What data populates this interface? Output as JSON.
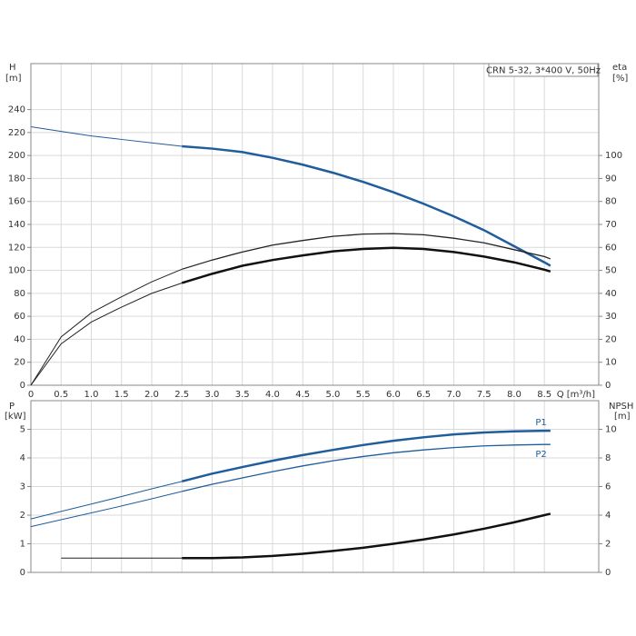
{
  "chart_data": [
    {
      "type": "line",
      "annotation": "CRN 5-32, 3*400 V, 50Hz",
      "ylabel": "H",
      "yunit": "[m]",
      "y2label": "eta",
      "y2unit": "[%]",
      "xlabel": "Q [m³/h]",
      "x": [
        0,
        0.5,
        1,
        1.5,
        2,
        2.5,
        3,
        3.5,
        4,
        4.5,
        5,
        5.5,
        6,
        6.5,
        7,
        7.5,
        8,
        8.5,
        8.6
      ],
      "xlim": [
        0,
        9.4
      ],
      "xticks": [
        0,
        0.5,
        {
          "value": 1,
          "label": "1.0"
        },
        1.5,
        {
          "value": 2,
          "label": "2.0"
        },
        2.5,
        {
          "value": 3,
          "label": "3.0"
        },
        3.5,
        {
          "value": 4,
          "label": "4.0"
        },
        4.5,
        {
          "value": 5,
          "label": "5.0"
        },
        5.5,
        {
          "value": 6,
          "label": "6.0"
        },
        6.5,
        {
          "value": 7,
          "label": "7.0"
        },
        7.5,
        {
          "value": 8,
          "label": "8.0"
        },
        8.5
      ],
      "ylim": [
        0,
        280
      ],
      "yticks": [
        0,
        20,
        40,
        60,
        80,
        100,
        120,
        140,
        160,
        180,
        200,
        220,
        240
      ],
      "y2lim": [
        0,
        140
      ],
      "y2ticks": [
        0,
        10,
        20,
        30,
        40,
        50,
        60,
        70,
        80,
        90,
        100
      ],
      "series": [
        {
          "color": "#1f5d9c",
          "width": 1,
          "values": [
            225,
            221,
            217,
            214,
            211,
            208,
            null,
            null,
            null,
            null,
            null,
            null,
            null,
            null,
            null,
            null,
            null,
            null,
            null
          ]
        },
        {
          "color": "#1f5d9c",
          "width": 2.5,
          "values": [
            null,
            null,
            null,
            null,
            null,
            208,
            206,
            203,
            198,
            192,
            185,
            177,
            168,
            158,
            147,
            135,
            121,
            107,
            104
          ]
        },
        {
          "color": "#222222",
          "width": 1,
          "axis": "y2",
          "values": [
            0,
            21,
            31.5,
            38.5,
            45,
            50.5,
            null,
            null,
            null,
            null,
            null,
            null,
            null,
            null,
            null,
            null,
            null,
            null,
            null
          ]
        },
        {
          "color": "#222222",
          "width": 1.3,
          "axis": "y2",
          "values": [
            null,
            null,
            null,
            null,
            null,
            50.5,
            54.5,
            58,
            61,
            63,
            64.8,
            65.8,
            66,
            65.5,
            64,
            62,
            59,
            56,
            55
          ]
        },
        {
          "color": "#222222",
          "width": 1,
          "axis": "y2",
          "values": [
            0,
            18,
            27.5,
            34,
            40,
            44.5,
            null,
            null,
            null,
            null,
            null,
            null,
            null,
            null,
            null,
            null,
            null,
            null,
            null
          ]
        },
        {
          "color": "#111111",
          "width": 2.5,
          "axis": "y2",
          "values": [
            null,
            null,
            null,
            null,
            null,
            44.5,
            48.5,
            52,
            54.5,
            56.5,
            58.3,
            59.3,
            59.8,
            59.3,
            58,
            56,
            53.5,
            50.3,
            49.5
          ]
        }
      ]
    },
    {
      "type": "line",
      "ylabel": "P",
      "yunit": "[kW]",
      "y2label": "NPSH",
      "y2unit": "[m]",
      "x": [
        0,
        0.5,
        1,
        1.5,
        2,
        2.5,
        3,
        3.5,
        4,
        4.5,
        5,
        5.5,
        6,
        6.5,
        7,
        7.5,
        8,
        8.5,
        8.6
      ],
      "xlim": [
        0,
        9.4
      ],
      "ylim": [
        0,
        6
      ],
      "yticks": [
        0,
        1,
        2,
        3,
        4,
        5
      ],
      "y2lim": [
        0,
        12
      ],
      "y2ticks": [
        0,
        2,
        4,
        6,
        8,
        10
      ],
      "series": [
        {
          "color": "#1f5d9c",
          "width": 1,
          "values": [
            1.87,
            2.13,
            2.39,
            2.65,
            2.92,
            3.18,
            null,
            null,
            null,
            null,
            null,
            null,
            null,
            null,
            null,
            null,
            null,
            null,
            null
          ]
        },
        {
          "name": "P1",
          "color": "#1f5d9c",
          "width": 2.5,
          "values": [
            null,
            null,
            null,
            null,
            null,
            3.18,
            3.45,
            3.68,
            3.9,
            4.1,
            4.28,
            4.45,
            4.6,
            4.72,
            4.82,
            4.89,
            4.93,
            4.95,
            4.95
          ]
        },
        {
          "color": "#1f5d9c",
          "width": 1,
          "values": [
            1.6,
            1.84,
            2.08,
            2.32,
            2.57,
            2.83,
            null,
            null,
            null,
            null,
            null,
            null,
            null,
            null,
            null,
            null,
            null,
            null,
            null
          ]
        },
        {
          "name": "P2",
          "color": "#1f5d9c",
          "width": 1.3,
          "values": [
            null,
            null,
            null,
            null,
            null,
            2.83,
            3.08,
            3.3,
            3.52,
            3.72,
            3.9,
            4.05,
            4.18,
            4.28,
            4.36,
            4.42,
            4.45,
            4.47,
            4.47
          ]
        },
        {
          "color": "#222222",
          "width": 1,
          "axis": "y2",
          "values": [
            null,
            1,
            1,
            1,
            1,
            1,
            null,
            null,
            null,
            null,
            null,
            null,
            null,
            null,
            null,
            null,
            null,
            null,
            null
          ]
        },
        {
          "color": "#111111",
          "width": 2.5,
          "axis": "y2",
          "values": [
            null,
            null,
            null,
            null,
            null,
            1,
            1,
            1.05,
            1.15,
            1.3,
            1.5,
            1.72,
            2,
            2.3,
            2.65,
            3.05,
            3.5,
            4,
            4.1
          ]
        }
      ]
    }
  ]
}
